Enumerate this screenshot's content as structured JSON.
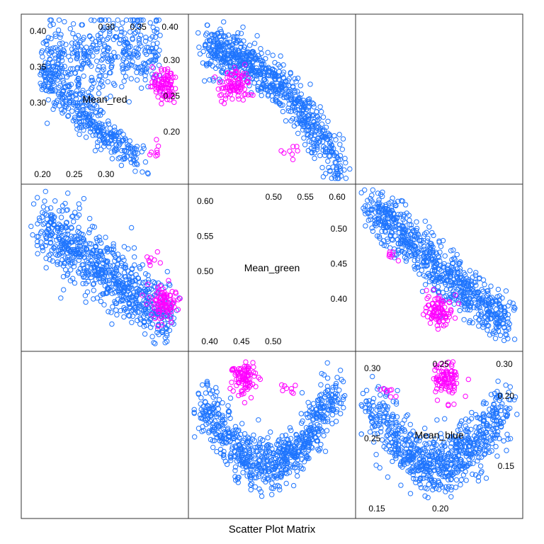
{
  "chart_data": {
    "type": "scatter",
    "title": "Scatter Plot Matrix",
    "variables": [
      "Mean_red",
      "Mean_green",
      "Mean_blue"
    ],
    "marker": "open-circle",
    "colors": {
      "group_1": "#1f75fe",
      "group_2": "#ff00ff"
    },
    "panels": [
      {
        "row": 0,
        "col": 0,
        "x": "Mean_red",
        "y": "Mean_blue"
      },
      {
        "row": 0,
        "col": 1,
        "x": "Mean_green",
        "y": "Mean_blue"
      },
      {
        "row": 1,
        "col": 0,
        "x": "Mean_red",
        "y": "Mean_green"
      },
      {
        "row": 1,
        "col": 2,
        "x": "Mean_blue",
        "y": "Mean_green"
      },
      {
        "row": 2,
        "col": 1,
        "x": "Mean_green",
        "y": "Mean_red"
      },
      {
        "row": 2,
        "col": 2,
        "x": "Mean_blue",
        "y": "Mean_red"
      }
    ],
    "diagonal": [
      {
        "var": "Mean_red",
        "label": "Mean_red",
        "lower_ticks": [
          "0.20",
          "0.25",
          "0.30"
        ],
        "upper_ticks": [
          "0.30",
          "0.35",
          "0.40"
        ],
        "left_ticks": [
          "0.40",
          "0.35",
          "0.30"
        ],
        "right_ticks": [
          "0.30",
          "0.25",
          "0.20"
        ]
      },
      {
        "var": "Mean_green",
        "label": "Mean_green",
        "lower_ticks": [
          "0.40",
          "0.45",
          "0.50"
        ],
        "upper_ticks": [
          "0.50",
          "0.55",
          "0.60"
        ],
        "left_ticks": [
          "0.60",
          "0.55",
          "0.50"
        ],
        "right_ticks": [
          "0.50",
          "0.45",
          "0.40"
        ]
      },
      {
        "var": "Mean_blue",
        "label": "Mean_blue",
        "lower_ticks": [
          "0.15",
          "0.20"
        ],
        "upper_ticks": [
          "0.25",
          "0.30"
        ],
        "left_ticks": [
          "0.30",
          "0.25"
        ],
        "right_ticks": [
          "0.20",
          "0.15"
        ]
      }
    ],
    "clusters": [
      {
        "group": "group_1",
        "panel": 0,
        "points": 620,
        "center_x": 0.2,
        "center_y": 0.26,
        "spread_x": 0.05,
        "spread_y": 0.03
      },
      {
        "group": "group_2",
        "panel": 0,
        "points": 90,
        "center_x": 0.29,
        "center_y": 0.27,
        "spread_x": 0.012,
        "spread_y": 0.01
      }
    ]
  }
}
